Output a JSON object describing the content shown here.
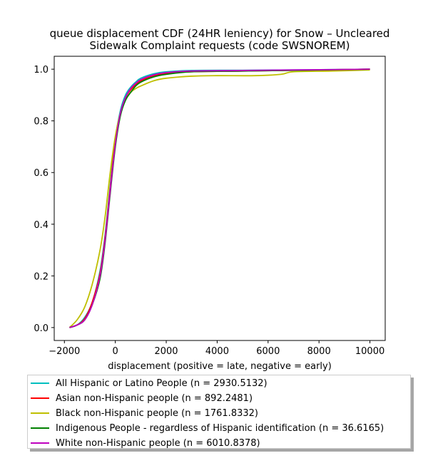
{
  "chart_data": {
    "type": "line",
    "title": [
      "queue displacement CDF (24HR leniency) for Snow – Uncleared",
      "Sidewalk Complaint  requests (code SWSNOREM)"
    ],
    "xlabel": "displacement (positive = late, negative = early)",
    "ylabel": "",
    "xlim": [
      -2400,
      10600
    ],
    "ylim": [
      -0.05,
      1.05
    ],
    "xticks": [
      -2000,
      0,
      2000,
      4000,
      6000,
      8000,
      10000
    ],
    "xtick_labels": [
      "−2000",
      "0",
      "2000",
      "4000",
      "6000",
      "8000",
      "10000"
    ],
    "yticks": [
      0.0,
      0.2,
      0.4,
      0.6,
      0.8,
      1.0
    ],
    "ytick_labels": [
      "0.0",
      "0.2",
      "0.4",
      "0.6",
      "0.8",
      "1.0"
    ],
    "grid": false,
    "legend_position": "bottom",
    "series": [
      {
        "name": "All Hispanic or Latino People (n = 2930.5132)",
        "color": "#00bfbf",
        "points": [
          [
            -1800,
            0.0
          ],
          [
            -1500,
            0.01
          ],
          [
            -1200,
            0.04
          ],
          [
            -900,
            0.1
          ],
          [
            -600,
            0.22
          ],
          [
            -400,
            0.36
          ],
          [
            -200,
            0.55
          ],
          [
            0,
            0.73
          ],
          [
            200,
            0.84
          ],
          [
            400,
            0.9
          ],
          [
            600,
            0.93
          ],
          [
            800,
            0.95
          ],
          [
            1000,
            0.965
          ],
          [
            1500,
            0.982
          ],
          [
            2000,
            0.99
          ],
          [
            3000,
            0.995
          ],
          [
            5000,
            0.996
          ],
          [
            8000,
            0.998
          ],
          [
            10000,
            1.0
          ]
        ]
      },
      {
        "name": "Asian non-Hispanic people (n = 892.2481)",
        "color": "#ff0000",
        "points": [
          [
            -1800,
            0.0
          ],
          [
            -1500,
            0.01
          ],
          [
            -1200,
            0.035
          ],
          [
            -900,
            0.1
          ],
          [
            -600,
            0.21
          ],
          [
            -400,
            0.35
          ],
          [
            -200,
            0.54
          ],
          [
            0,
            0.72
          ],
          [
            200,
            0.83
          ],
          [
            400,
            0.89
          ],
          [
            600,
            0.92
          ],
          [
            800,
            0.94
          ],
          [
            1000,
            0.955
          ],
          [
            1500,
            0.975
          ],
          [
            2000,
            0.984
          ],
          [
            3000,
            0.99
          ],
          [
            5000,
            0.993
          ],
          [
            8000,
            0.997
          ],
          [
            10000,
            1.0
          ]
        ]
      },
      {
        "name": "Black non-Hispanic people (n = 1761.8332)",
        "color": "#bfbf00",
        "points": [
          [
            -1800,
            0.0
          ],
          [
            -1500,
            0.03
          ],
          [
            -1200,
            0.08
          ],
          [
            -900,
            0.17
          ],
          [
            -600,
            0.3
          ],
          [
            -400,
            0.43
          ],
          [
            -200,
            0.6
          ],
          [
            0,
            0.74
          ],
          [
            200,
            0.83
          ],
          [
            400,
            0.88
          ],
          [
            600,
            0.91
          ],
          [
            800,
            0.925
          ],
          [
            1000,
            0.935
          ],
          [
            1500,
            0.955
          ],
          [
            2000,
            0.965
          ],
          [
            3000,
            0.973
          ],
          [
            4000,
            0.975
          ],
          [
            5500,
            0.975
          ],
          [
            6500,
            0.98
          ],
          [
            7000,
            0.99
          ],
          [
            8500,
            0.993
          ],
          [
            10000,
            0.997
          ]
        ]
      },
      {
        "name": "Indigenous People - regardless of Hispanic identification (n = 36.6165)",
        "color": "#008000",
        "points": [
          [
            -1800,
            0.0
          ],
          [
            -1500,
            0.01
          ],
          [
            -1200,
            0.03
          ],
          [
            -900,
            0.09
          ],
          [
            -600,
            0.19
          ],
          [
            -400,
            0.33
          ],
          [
            -200,
            0.52
          ],
          [
            0,
            0.7
          ],
          [
            200,
            0.82
          ],
          [
            400,
            0.88
          ],
          [
            600,
            0.91
          ],
          [
            800,
            0.935
          ],
          [
            1000,
            0.95
          ],
          [
            1500,
            0.97
          ],
          [
            2000,
            0.98
          ],
          [
            3000,
            0.99
          ],
          [
            5000,
            0.993
          ],
          [
            8000,
            0.997
          ],
          [
            10000,
            1.0
          ]
        ]
      },
      {
        "name": "White non-Hispanic people (n = 6010.8378)",
        "color": "#bf00bf",
        "points": [
          [
            -1800,
            0.0
          ],
          [
            -1500,
            0.01
          ],
          [
            -1200,
            0.03
          ],
          [
            -900,
            0.09
          ],
          [
            -600,
            0.2
          ],
          [
            -400,
            0.34
          ],
          [
            -200,
            0.53
          ],
          [
            0,
            0.71
          ],
          [
            200,
            0.83
          ],
          [
            400,
            0.89
          ],
          [
            600,
            0.925
          ],
          [
            800,
            0.945
          ],
          [
            1000,
            0.96
          ],
          [
            1500,
            0.978
          ],
          [
            2000,
            0.987
          ],
          [
            3000,
            0.993
          ],
          [
            5000,
            0.995
          ],
          [
            8000,
            0.998
          ],
          [
            10000,
            1.0
          ]
        ]
      }
    ]
  }
}
